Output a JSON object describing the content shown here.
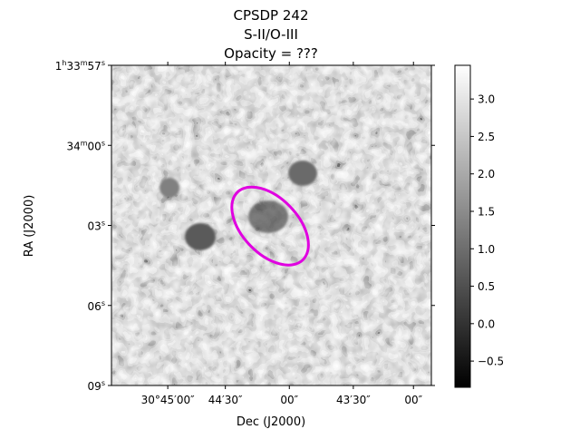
{
  "chart_data": {
    "type": "heatmap",
    "title_lines": [
      "CPSDP 242",
      "S-II/O-III",
      "Opacity = ???"
    ],
    "xlabel": "Dec (J2000)",
    "ylabel": "RA (J2000)",
    "x_ticks": [
      {
        "label": "30°45′00″",
        "frac": 0.176
      },
      {
        "label": "44′30″",
        "frac": 0.356
      },
      {
        "label": "00″",
        "frac": 0.556
      },
      {
        "label": "43′30″",
        "frac": 0.756
      },
      {
        "label": "00″",
        "frac": 0.944
      }
    ],
    "y_ticks": [
      {
        "hms": "1",
        "h": "h",
        "m_val": "33",
        "m": "m",
        "s_val": "57",
        "s": "s",
        "frac": 0.0
      },
      {
        "hms": "",
        "h": "",
        "m_val": "34",
        "m": "m",
        "s_val": "00",
        "s": "s",
        "frac": 0.25
      },
      {
        "hms": "",
        "h": "",
        "m_val": "",
        "m": "",
        "s_val": "03",
        "s": "s",
        "frac": 0.5
      },
      {
        "hms": "",
        "h": "",
        "m_val": "",
        "m": "",
        "s_val": "06",
        "s": "s",
        "frac": 0.75
      },
      {
        "hms": "",
        "h": "",
        "m_val": "",
        "m": "",
        "s_val": "09",
        "s": "s",
        "frac": 1.0
      }
    ],
    "colorbar": {
      "vmin": -0.85,
      "vmax": 3.45,
      "ticks": [
        -0.5,
        0.0,
        0.5,
        1.0,
        1.5,
        2.0,
        2.5,
        3.0
      ],
      "tick_labels": [
        "−0.5",
        "0.0",
        "0.5",
        "1.0",
        "1.5",
        "2.0",
        "2.5",
        "3.0"
      ],
      "colormap": "gray"
    },
    "region": {
      "shape": "ellipse",
      "color": "#e000e0",
      "center_frac": [
        0.496,
        0.502
      ],
      "rx_frac": 0.147,
      "ry_frac": 0.087,
      "angle_deg": 46
    }
  }
}
